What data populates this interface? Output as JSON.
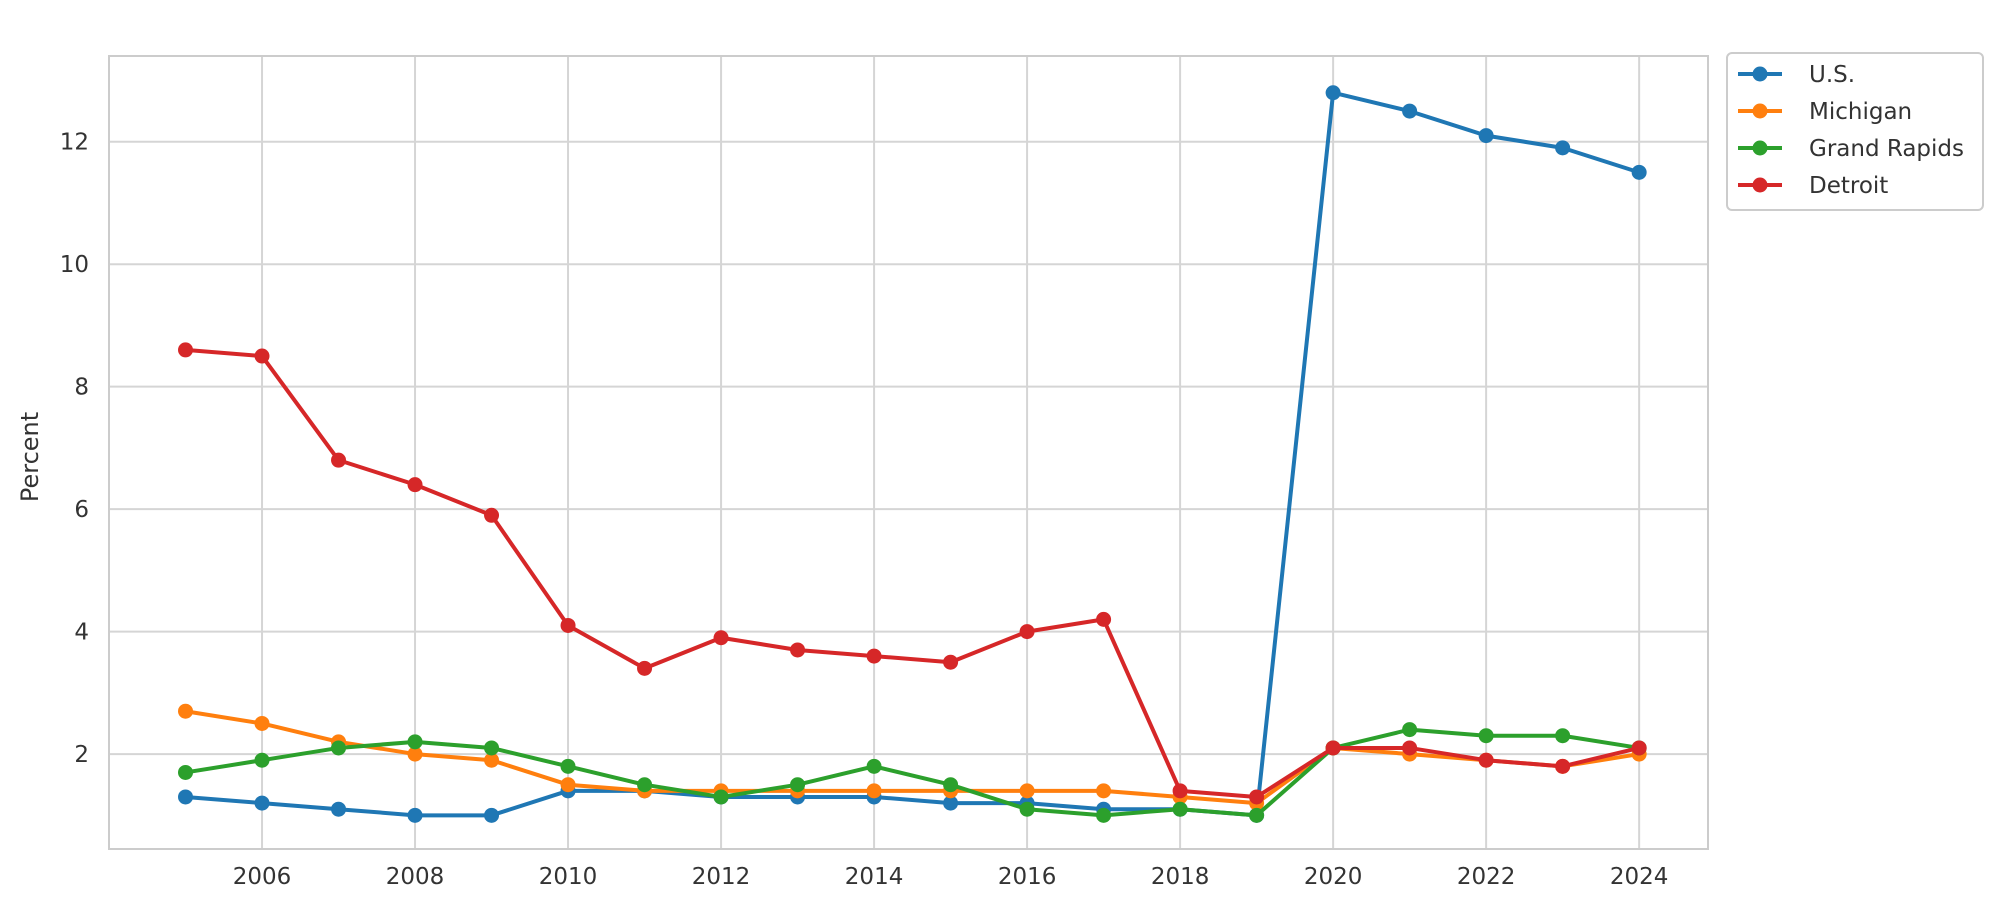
{
  "chart_data": {
    "type": "line",
    "title": "",
    "xlabel": "",
    "ylabel": "Percent",
    "x": [
      2005,
      2006,
      2007,
      2008,
      2009,
      2010,
      2011,
      2012,
      2013,
      2014,
      2015,
      2016,
      2017,
      2018,
      2019,
      2020,
      2021,
      2022,
      2023,
      2024
    ],
    "xlim": [
      2004.0,
      2024.9
    ],
    "ylim": [
      0.45,
      13.4
    ],
    "xticks": [
      "2006",
      "2008",
      "2010",
      "2012",
      "2014",
      "2016",
      "2018",
      "2020",
      "2022",
      "2024"
    ],
    "yticks": [
      "2",
      "4",
      "6",
      "8",
      "10",
      "12"
    ],
    "grid": true,
    "legend_position": "outside top-right",
    "series": [
      {
        "name": "U.S.",
        "color": "#1f77b4",
        "values": [
          1.3,
          1.2,
          1.1,
          1.0,
          1.0,
          1.4,
          1.4,
          1.3,
          1.3,
          1.3,
          1.2,
          1.2,
          1.1,
          1.1,
          1.0,
          12.8,
          12.5,
          12.1,
          11.9,
          11.5
        ]
      },
      {
        "name": "Michigan",
        "color": "#ff7f0e",
        "values": [
          2.7,
          2.5,
          2.2,
          2.0,
          1.9,
          1.5,
          1.4,
          1.4,
          1.4,
          1.4,
          1.4,
          1.4,
          1.4,
          1.3,
          1.2,
          2.1,
          2.0,
          1.9,
          1.8,
          2.0
        ]
      },
      {
        "name": "Grand Rapids",
        "color": "#2ca02c",
        "values": [
          1.7,
          1.9,
          2.1,
          2.2,
          2.1,
          1.8,
          1.5,
          1.3,
          1.5,
          1.8,
          1.5,
          1.1,
          1.0,
          1.1,
          1.0,
          2.1,
          2.4,
          2.3,
          2.3,
          2.1
        ]
      },
      {
        "name": "Detroit",
        "color": "#d62728",
        "values": [
          8.6,
          8.5,
          6.8,
          6.4,
          5.9,
          4.1,
          3.4,
          3.9,
          3.7,
          3.6,
          3.5,
          4.0,
          4.2,
          1.4,
          1.3,
          2.1,
          2.1,
          1.9,
          1.8,
          2.1
        ]
      }
    ]
  }
}
